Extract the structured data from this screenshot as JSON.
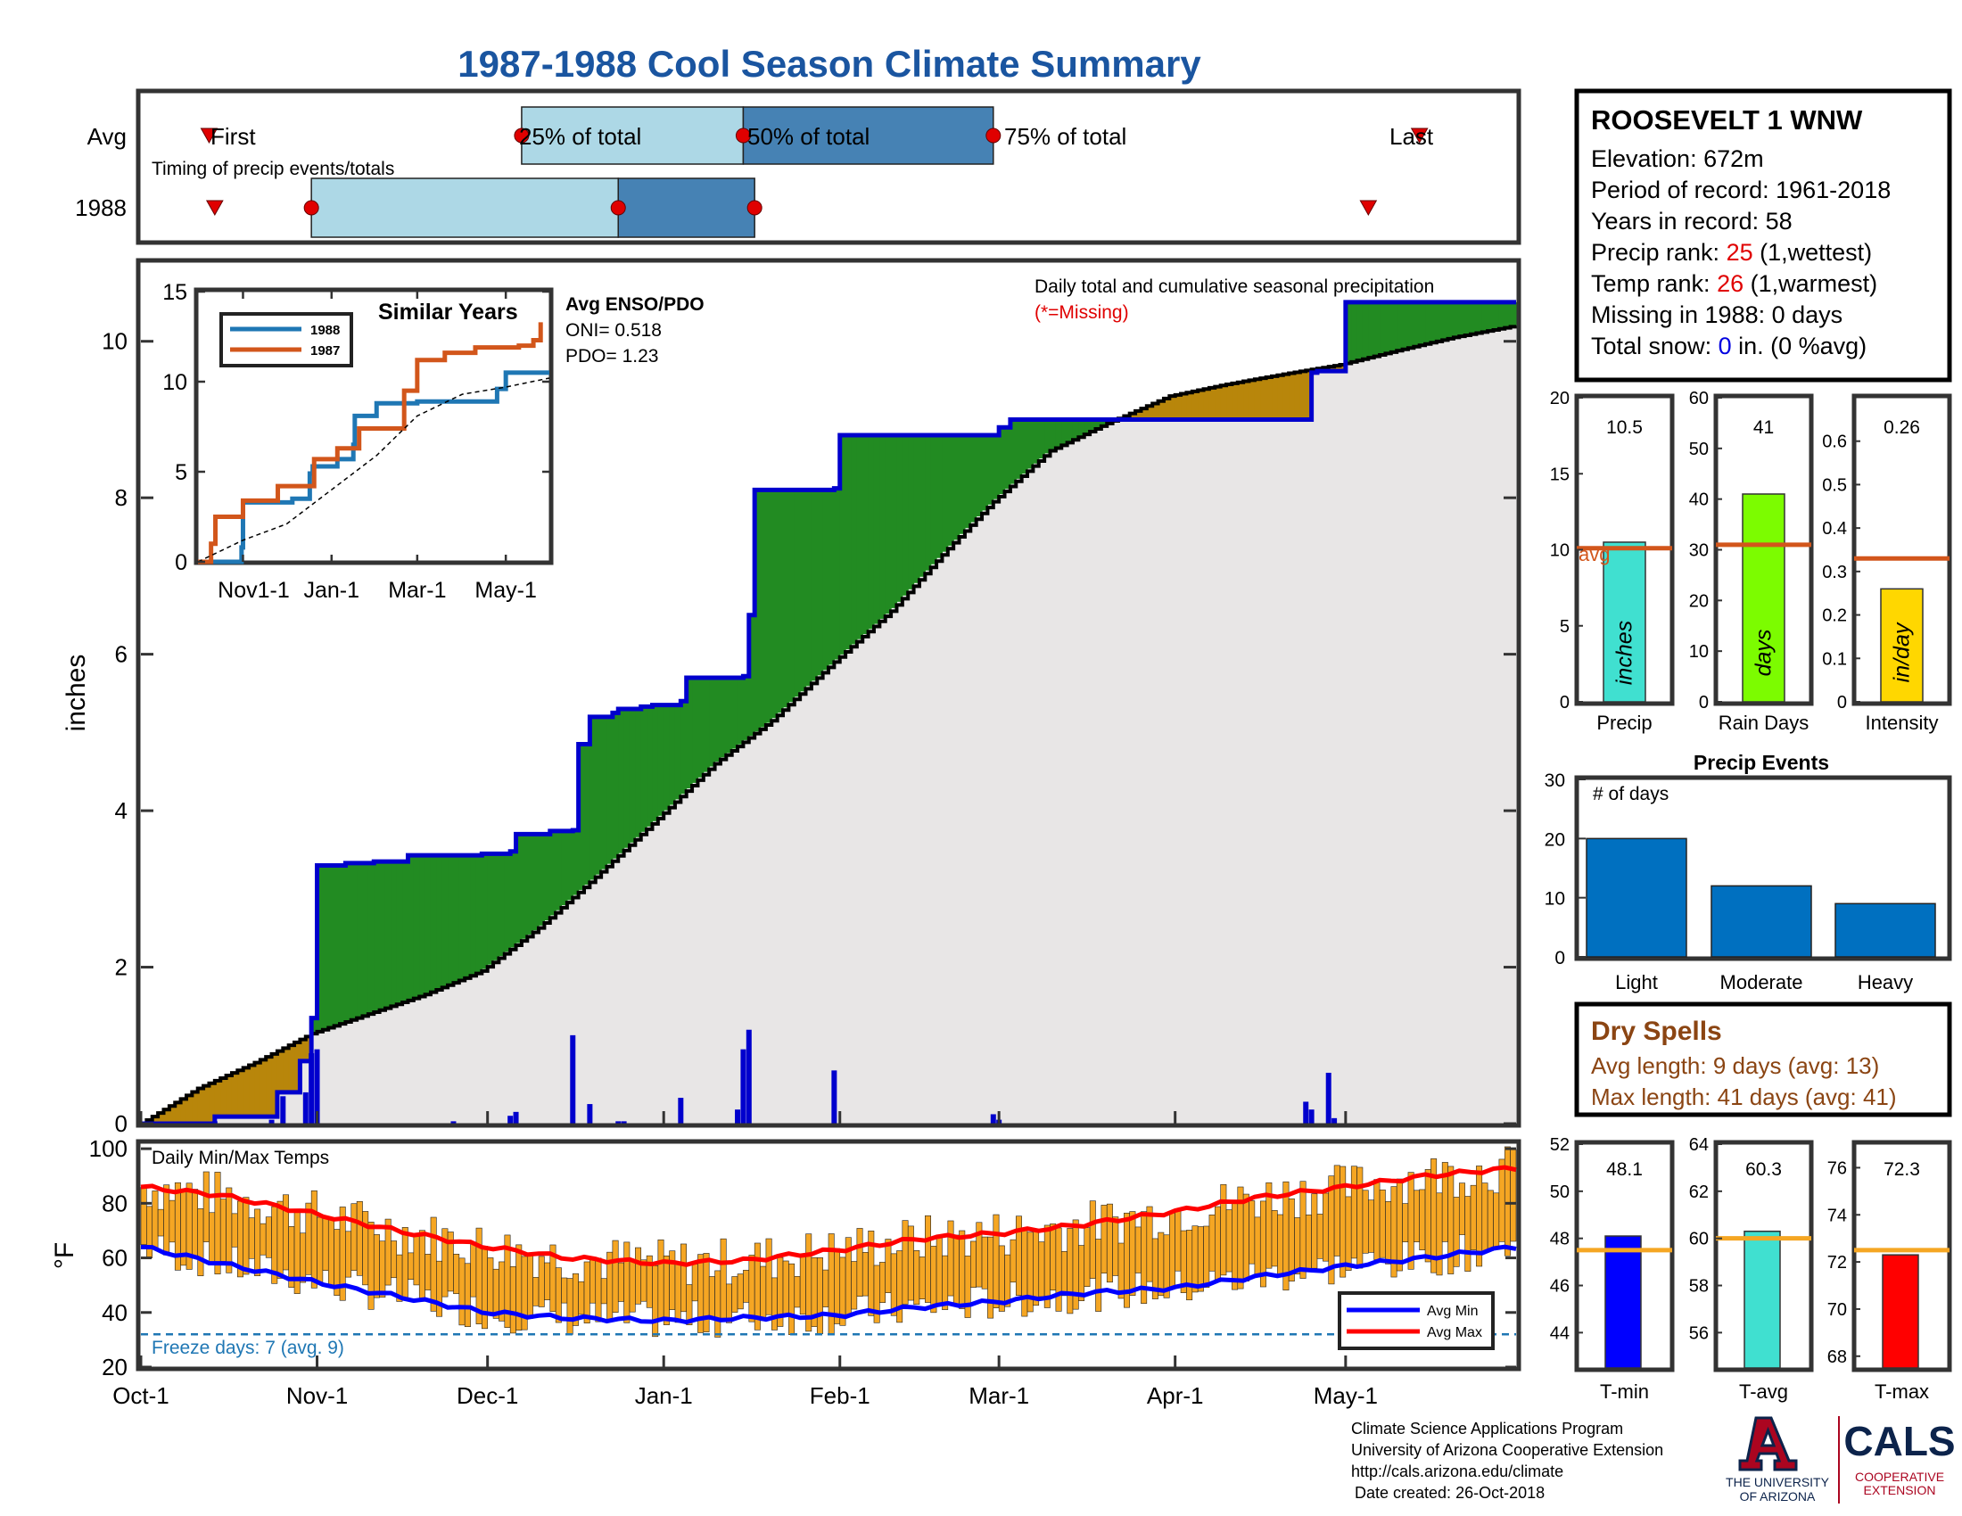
{
  "title": "1987-1988 Cool Season Climate Summary",
  "timing": {
    "row_avg_label": "Avg",
    "row_year_label": "1988",
    "caption": "Timing of precip events/totals",
    "first_label": "First",
    "last_label": "Last",
    "p25_label": "25% of total",
    "p50_label": "50% of total",
    "p75_label": "75% of total",
    "avg": {
      "first": "Oct-13",
      "p25": "Dec-07",
      "p50": "Jan-15",
      "p75": "Feb-28",
      "last": "May-14"
    },
    "year": {
      "first": "Oct-14",
      "p25": "Oct-31",
      "p50": "Dec-24",
      "p75": "Jan-17",
      "last": "May-05"
    }
  },
  "station": {
    "name": "ROOSEVELT 1 WNW",
    "elevation": "Elevation: 672m",
    "period": "Period of record: 1961-2018",
    "years": "Years in record: 58",
    "precip_rank_prefix": "Precip rank: ",
    "precip_rank": "25",
    "precip_rank_suffix": " (1,wettest)",
    "temp_rank_prefix": "Temp rank: ",
    "temp_rank": "26",
    "temp_rank_suffix": " (1,warmest)",
    "missing": "Missing in 1988: 0 days",
    "snow_prefix": "Total snow: ",
    "snow_value": "0",
    "snow_suffix": " in. (0 %avg)"
  },
  "precip_panel": {
    "ylabel": "inches",
    "note": "Daily total and cumulative seasonal precipitation",
    "missing_note": "(*=Missing)",
    "y_ticks": [
      "0",
      "2",
      "4",
      "6",
      "8",
      "10"
    ],
    "colors": {
      "above": "#228B22",
      "below": "#B8860B",
      "climo": "#E8E6E6",
      "cumulative": "#0000CD",
      "daily": "#0000CD"
    }
  },
  "enso": {
    "title": "Avg ENSO/PDO",
    "oni": "ONI= 0.518",
    "pdo": "PDO= 1.23"
  },
  "similar_years": {
    "title": "Similar Years",
    "x_ticks": [
      "Nov1-1",
      "Jan-1",
      "Mar-1",
      "May-1"
    ],
    "y_ticks": [
      "0",
      "5",
      "10",
      "15"
    ],
    "legend": [
      {
        "name": "1988",
        "color": "#1f77b4"
      },
      {
        "name": "1987",
        "color": "#D2561B"
      }
    ]
  },
  "temp_panel": {
    "title": "Daily Min/Max Temps",
    "ylabel": "°F",
    "y_ticks": [
      "20",
      "40",
      "60",
      "80",
      "100"
    ],
    "freeze_label": "Freeze days: 7 (avg. 9)",
    "legend_min": "Avg Min",
    "legend_max": "Avg Max",
    "colors": {
      "bars": "#F5A623",
      "avg_min": "#0000FF",
      "avg_max": "#FF0000"
    }
  },
  "x_axis": {
    "ticks": [
      "Oct-1",
      "Nov-1",
      "Dec-1",
      "Jan-1",
      "Feb-1",
      "Mar-1",
      "Apr-1",
      "May-1"
    ]
  },
  "summary_bars": [
    {
      "label": "Precip",
      "unit": "inches",
      "value": 10.5,
      "value_label": "10.5",
      "avg": 10.1,
      "avg_label": "avg",
      "ymax": 20,
      "ticks": [
        "0",
        "5",
        "10",
        "15",
        "20"
      ],
      "color": "#40E0D0"
    },
    {
      "label": "Rain Days",
      "unit": "days",
      "value": 41,
      "value_label": "41",
      "avg": 31,
      "ymax": 60,
      "ticks": [
        "0",
        "10",
        "20",
        "30",
        "40",
        "50",
        "60"
      ],
      "color": "#7CFC00"
    },
    {
      "label": "Intensity",
      "unit": "in/day",
      "value": 0.26,
      "value_label": "0.26",
      "avg": 0.33,
      "ymax": 0.7,
      "ticks": [
        "0",
        "0.1",
        "0.2",
        "0.3",
        "0.4",
        "0.5",
        "0.6"
      ],
      "color": "#FFD700"
    }
  ],
  "precip_events": {
    "title": "Precip Events",
    "note": "# of days",
    "ymax": 30,
    "y_ticks": [
      "0",
      "10",
      "20",
      "30"
    ],
    "categories": [
      "Light",
      "Moderate",
      "Heavy"
    ],
    "values": [
      20,
      12,
      9
    ],
    "color": "#0070C0"
  },
  "dry_spells": {
    "title": "Dry Spells",
    "avg_length": "Avg length: 9 days (avg: 13)",
    "max_length": "Max length: 41 days (avg: 41)"
  },
  "temp_bars": [
    {
      "label": "T-min",
      "value": 48.1,
      "value_label": "48.1",
      "avg": 47.5,
      "ymin": 42.5,
      "ymax": 52,
      "ticks": [
        "44",
        "46",
        "48",
        "50",
        "52"
      ],
      "color": "#0000FF"
    },
    {
      "label": "T-avg",
      "value": 60.3,
      "value_label": "60.3",
      "avg": 60.0,
      "ymin": 54.5,
      "ymax": 64,
      "ticks": [
        "56",
        "58",
        "60",
        "62",
        "64"
      ],
      "color": "#40E0D0"
    },
    {
      "label": "T-max",
      "value": 72.3,
      "value_label": "72.3",
      "avg": 72.5,
      "ymin": 67.5,
      "ymax": 77,
      "ticks": [
        "68",
        "70",
        "72",
        "74",
        "76"
      ],
      "color": "#FF0000"
    }
  ],
  "footer": {
    "line1": "Climate Science Applications Program",
    "line2": "University of Arizona Cooperative Extension",
    "line3": "http://cals.arizona.edu/climate",
    "line4": "Date created: 26-Oct-2018",
    "ua_line1": "THE UNIVERSITY",
    "ua_line2": "OF ARIZONA",
    "cals": "CALS",
    "cals_line1": "COOPERATIVE",
    "cals_line2": "EXTENSION"
  },
  "chart_data": [
    {
      "type": "area",
      "title": "Daily total and cumulative seasonal precipitation",
      "ylabel": "inches",
      "ylim": [
        0,
        11
      ],
      "x_range": [
        "Oct-1",
        "May-31"
      ],
      "series": [
        {
          "name": "cumulative",
          "points": [
            [
              "Oct-01",
              0
            ],
            [
              "Oct-14",
              0.09
            ],
            [
              "Oct-24",
              0.09
            ],
            [
              "Oct-25",
              0.4
            ],
            [
              "Oct-29",
              0.8
            ],
            [
              "Oct-31",
              1.35
            ],
            [
              "Nov-01",
              3.3
            ],
            [
              "Nov-06",
              3.33
            ],
            [
              "Nov-11",
              3.35
            ],
            [
              "Nov-16",
              3.35
            ],
            [
              "Nov-17",
              3.43
            ],
            [
              "Nov-30",
              3.45
            ],
            [
              "Dec-05",
              3.48
            ],
            [
              "Dec-06",
              3.7
            ],
            [
              "Dec-12",
              3.74
            ],
            [
              "Dec-16",
              3.75
            ],
            [
              "Dec-17",
              4.85
            ],
            [
              "Dec-19",
              5.2
            ],
            [
              "Dec-23",
              5.25
            ],
            [
              "Dec-24",
              5.3
            ],
            [
              "Dec-28",
              5.33
            ],
            [
              "Dec-30",
              5.35
            ],
            [
              "Jan-04",
              5.4
            ],
            [
              "Jan-05",
              5.7
            ],
            [
              "Jan-15",
              5.72
            ],
            [
              "Jan-16",
              6.5
            ],
            [
              "Jan-17",
              8.1
            ],
            [
              "Jan-31",
              8.12
            ],
            [
              "Feb-01",
              8.8
            ],
            [
              "Feb-28",
              8.8
            ],
            [
              "Mar-01",
              8.9
            ],
            [
              "Mar-03",
              9.0
            ],
            [
              "Apr-24",
              9.0
            ],
            [
              "Apr-25",
              9.6
            ],
            [
              "Apr-26",
              9.62
            ],
            [
              "Apr-30",
              9.62
            ],
            [
              "May-01",
              10.5
            ],
            [
              "May-31",
              10.5
            ]
          ]
        },
        {
          "name": "climatology",
          "points": [
            [
              "Oct-01",
              0
            ],
            [
              "Oct-11",
              0.45
            ],
            [
              "Oct-21",
              0.78
            ],
            [
              "Oct-31",
              1.15
            ],
            [
              "Nov-10",
              1.4
            ],
            [
              "Nov-20",
              1.65
            ],
            [
              "Nov-30",
              1.95
            ],
            [
              "Dec-10",
              2.5
            ],
            [
              "Dec-20",
              3.15
            ],
            [
              "Dec-31",
              3.9
            ],
            [
              "Jan-10",
              4.6
            ],
            [
              "Jan-20",
              5.15
            ],
            [
              "Jan-31",
              5.9
            ],
            [
              "Feb-10",
              6.55
            ],
            [
              "Feb-20",
              7.35
            ],
            [
              "Feb-28",
              7.95
            ],
            [
              "Mar-10",
              8.6
            ],
            [
              "Mar-20",
              8.95
            ],
            [
              "Mar-31",
              9.3
            ],
            [
              "Apr-10",
              9.45
            ],
            [
              "Apr-20",
              9.58
            ],
            [
              "Apr-30",
              9.7
            ],
            [
              "May-10",
              9.88
            ],
            [
              "May-20",
              10.05
            ],
            [
              "May-31",
              10.2
            ]
          ]
        },
        {
          "name": "daily",
          "points": [
            [
              "Oct-14",
              0.03
            ],
            [
              "Oct-24",
              0.05
            ],
            [
              "Oct-26",
              0.35
            ],
            [
              "Oct-30",
              0.4
            ],
            [
              "Oct-31",
              0.9
            ],
            [
              "Nov-01",
              0.95
            ],
            [
              "Nov-25",
              0.03
            ],
            [
              "Dec-05",
              0.1
            ],
            [
              "Dec-06",
              0.15
            ],
            [
              "Dec-16",
              1.13
            ],
            [
              "Dec-19",
              0.25
            ],
            [
              "Dec-24",
              0.03
            ],
            [
              "Dec-25",
              0.03
            ],
            [
              "Jan-04",
              0.33
            ],
            [
              "Jan-14",
              0.18
            ],
            [
              "Jan-15",
              0.95
            ],
            [
              "Jan-16",
              1.2
            ],
            [
              "Jan-31",
              0.68
            ],
            [
              "Feb-28",
              0.12
            ],
            [
              "Mar-01",
              0.05
            ],
            [
              "Apr-24",
              0.28
            ],
            [
              "Apr-25",
              0.18
            ],
            [
              "Apr-28",
              0.65
            ],
            [
              "Apr-29",
              0.07
            ]
          ]
        }
      ]
    },
    {
      "type": "line",
      "title": "Similar Years",
      "ylim": [
        0,
        15
      ],
      "x_ticks": [
        "Nov1-1",
        "Jan-1",
        "Mar-1",
        "May-1"
      ],
      "series": [
        {
          "name": "1988",
          "points": [
            [
              "Oct-01",
              0
            ],
            [
              "Oct-24",
              0
            ],
            [
              "Oct-31",
              0.8
            ],
            [
              "Nov-01",
              3.3
            ],
            [
              "Dec-05",
              3.5
            ],
            [
              "Dec-17",
              4.9
            ],
            [
              "Dec-19",
              5.3
            ],
            [
              "Jan-05",
              5.7
            ],
            [
              "Jan-16",
              6.5
            ],
            [
              "Jan-17",
              8.1
            ],
            [
              "Feb-01",
              8.8
            ],
            [
              "Mar-01",
              8.9
            ],
            [
              "Apr-25",
              9.6
            ],
            [
              "May-01",
              10.5
            ],
            [
              "May-31",
              10.5
            ]
          ]
        },
        {
          "name": "1987",
          "points": [
            [
              "Oct-01",
              0
            ],
            [
              "Oct-10",
              1.0
            ],
            [
              "Oct-13",
              2.5
            ],
            [
              "Nov-01",
              3.4
            ],
            [
              "Nov-25",
              4.2
            ],
            [
              "Dec-20",
              5.7
            ],
            [
              "Jan-05",
              6.3
            ],
            [
              "Jan-20",
              7.4
            ],
            [
              "Feb-20",
              9.5
            ],
            [
              "Mar-01",
              11.2
            ],
            [
              "Mar-20",
              11.6
            ],
            [
              "Apr-10",
              11.9
            ],
            [
              "May-10",
              12.0
            ],
            [
              "May-20",
              12.3
            ],
            [
              "May-25",
              13.3
            ]
          ]
        },
        {
          "name": "avg",
          "points": [
            [
              "Oct-01",
              0
            ],
            [
              "Nov-01",
              1.2
            ],
            [
              "Dec-01",
              2.1
            ],
            [
              "Jan-01",
              4.0
            ],
            [
              "Feb-01",
              5.9
            ],
            [
              "Mar-01",
              8.1
            ],
            [
              "Apr-01",
              9.3
            ],
            [
              "May-01",
              9.7
            ],
            [
              "May-31",
              10.2
            ]
          ]
        }
      ]
    },
    {
      "type": "bar",
      "title": "Daily Min/Max Temps",
      "ylabel": "°F",
      "ylim": [
        20,
        100
      ],
      "series": [
        {
          "name": "Avg Max",
          "points": [
            [
              "Oct-01",
              86
            ],
            [
              "Oct-15",
              83
            ],
            [
              "Nov-01",
              76
            ],
            [
              "Nov-15",
              70
            ],
            [
              "Dec-01",
              64
            ],
            [
              "Dec-15",
              60
            ],
            [
              "Jan-01",
              58
            ],
            [
              "Jan-15",
              59
            ],
            [
              "Feb-01",
              63
            ],
            [
              "Feb-15",
              67
            ],
            [
              "Mar-01",
              69
            ],
            [
              "Mar-15",
              72
            ],
            [
              "Apr-01",
              77
            ],
            [
              "Apr-15",
              82
            ],
            [
              "May-01",
              86
            ],
            [
              "May-15",
              90
            ],
            [
              "May-31",
              93
            ]
          ]
        },
        {
          "name": "Avg Min",
          "points": [
            [
              "Oct-01",
              64
            ],
            [
              "Oct-15",
              58
            ],
            [
              "Nov-01",
              51
            ],
            [
              "Nov-15",
              46
            ],
            [
              "Dec-01",
              40
            ],
            [
              "Dec-15",
              38
            ],
            [
              "Jan-01",
              37
            ],
            [
              "Jan-15",
              38
            ],
            [
              "Feb-01",
              39
            ],
            [
              "Feb-15",
              42
            ],
            [
              "Mar-01",
              44
            ],
            [
              "Mar-15",
              47
            ],
            [
              "Apr-01",
              49
            ],
            [
              "Apr-15",
              53
            ],
            [
              "May-01",
              57
            ],
            [
              "May-15",
              60
            ],
            [
              "May-31",
              64
            ]
          ]
        },
        {
          "name": "Freeze threshold",
          "points": [
            [
              "Oct-01",
              32
            ],
            [
              "May-31",
              32
            ]
          ]
        }
      ]
    },
    {
      "type": "bar",
      "title": "Precip Events",
      "categories": [
        "Light",
        "Moderate",
        "Heavy"
      ],
      "values": [
        20,
        12,
        9
      ],
      "ylim": [
        0,
        30
      ]
    },
    {
      "type": "bar",
      "categories": [
        "Precip",
        "Rain Days",
        "Intensity"
      ],
      "values": [
        10.5,
        41,
        0.26
      ],
      "averages": [
        10.1,
        31,
        0.33
      ]
    },
    {
      "type": "bar",
      "categories": [
        "T-min",
        "T-avg",
        "T-max"
      ],
      "values": [
        48.1,
        60.3,
        72.3
      ],
      "averages": [
        47.5,
        60.0,
        72.5
      ]
    }
  ]
}
